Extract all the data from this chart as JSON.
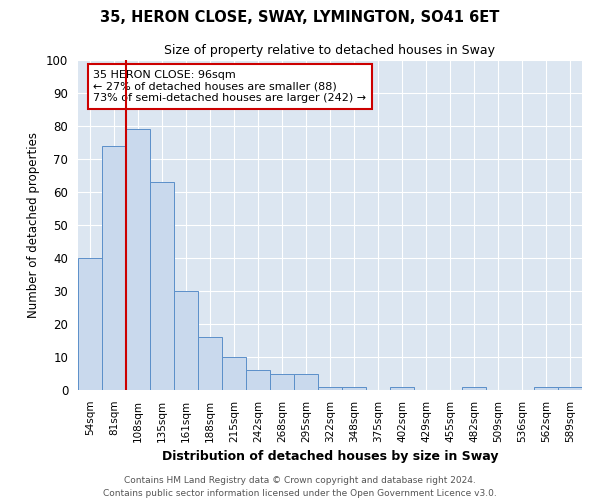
{
  "title": "35, HERON CLOSE, SWAY, LYMINGTON, SO41 6ET",
  "subtitle": "Size of property relative to detached houses in Sway",
  "xlabel": "Distribution of detached houses by size in Sway",
  "ylabel": "Number of detached properties",
  "categories": [
    "54sqm",
    "81sqm",
    "108sqm",
    "135sqm",
    "161sqm",
    "188sqm",
    "215sqm",
    "242sqm",
    "268sqm",
    "295sqm",
    "322sqm",
    "348sqm",
    "375sqm",
    "402sqm",
    "429sqm",
    "455sqm",
    "482sqm",
    "509sqm",
    "536sqm",
    "562sqm",
    "589sqm"
  ],
  "values": [
    40,
    74,
    79,
    63,
    30,
    16,
    10,
    6,
    5,
    5,
    1,
    1,
    0,
    1,
    0,
    0,
    1,
    0,
    0,
    1,
    1
  ],
  "bar_color": "#c9d9ed",
  "bar_edge_color": "#5b8fc9",
  "vline_color": "#cc0000",
  "annotation_text": "35 HERON CLOSE: 96sqm\n← 27% of detached houses are smaller (88)\n73% of semi-detached houses are larger (242) →",
  "annotation_box_color": "#cc0000",
  "ylim": [
    0,
    100
  ],
  "yticks": [
    0,
    10,
    20,
    30,
    40,
    50,
    60,
    70,
    80,
    90,
    100
  ],
  "plot_bg_color": "#dce6f1",
  "footer_line1": "Contains HM Land Registry data © Crown copyright and database right 2024.",
  "footer_line2": "Contains public sector information licensed under the Open Government Licence v3.0."
}
